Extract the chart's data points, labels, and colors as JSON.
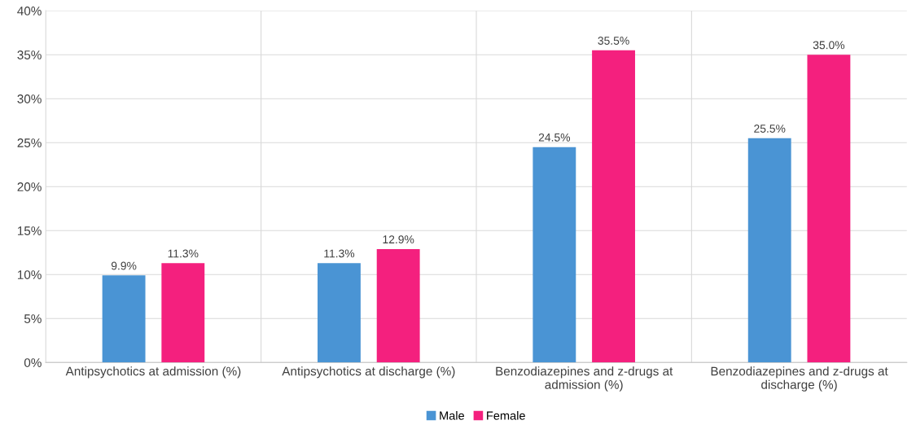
{
  "chart_data": {
    "type": "bar",
    "categories": [
      "Antipsychotics at admission (%)",
      "Antipsychotics at discharge (%)",
      "Benzodiazepines and z-drugs at admission (%)",
      "Benzodiazepines and z-drugs at discharge (%)"
    ],
    "series": [
      {
        "name": "Male",
        "color": "#4a94d4",
        "values": [
          9.9,
          11.3,
          24.5,
          25.5
        ],
        "value_labels": [
          "9.9%",
          "11.3%",
          "24.5%",
          "25.5%"
        ]
      },
      {
        "name": "Female",
        "color": "#f4207e",
        "values": [
          11.3,
          12.9,
          35.5,
          35.0
        ],
        "value_labels": [
          "11.3%",
          "12.9%",
          "35.5%",
          "35.0%"
        ]
      }
    ],
    "ylim": [
      0,
      40
    ],
    "yticks": [
      {
        "value": 0,
        "label": "0%"
      },
      {
        "value": 5,
        "label": "5%"
      },
      {
        "value": 10,
        "label": "10%"
      },
      {
        "value": 15,
        "label": "15%"
      },
      {
        "value": 20,
        "label": "20%"
      },
      {
        "value": 25,
        "label": "25%"
      },
      {
        "value": 30,
        "label": "30%"
      },
      {
        "value": 35,
        "label": "35%"
      },
      {
        "value": 40,
        "label": "40%"
      }
    ],
    "grid": true,
    "legend": "bottom"
  }
}
